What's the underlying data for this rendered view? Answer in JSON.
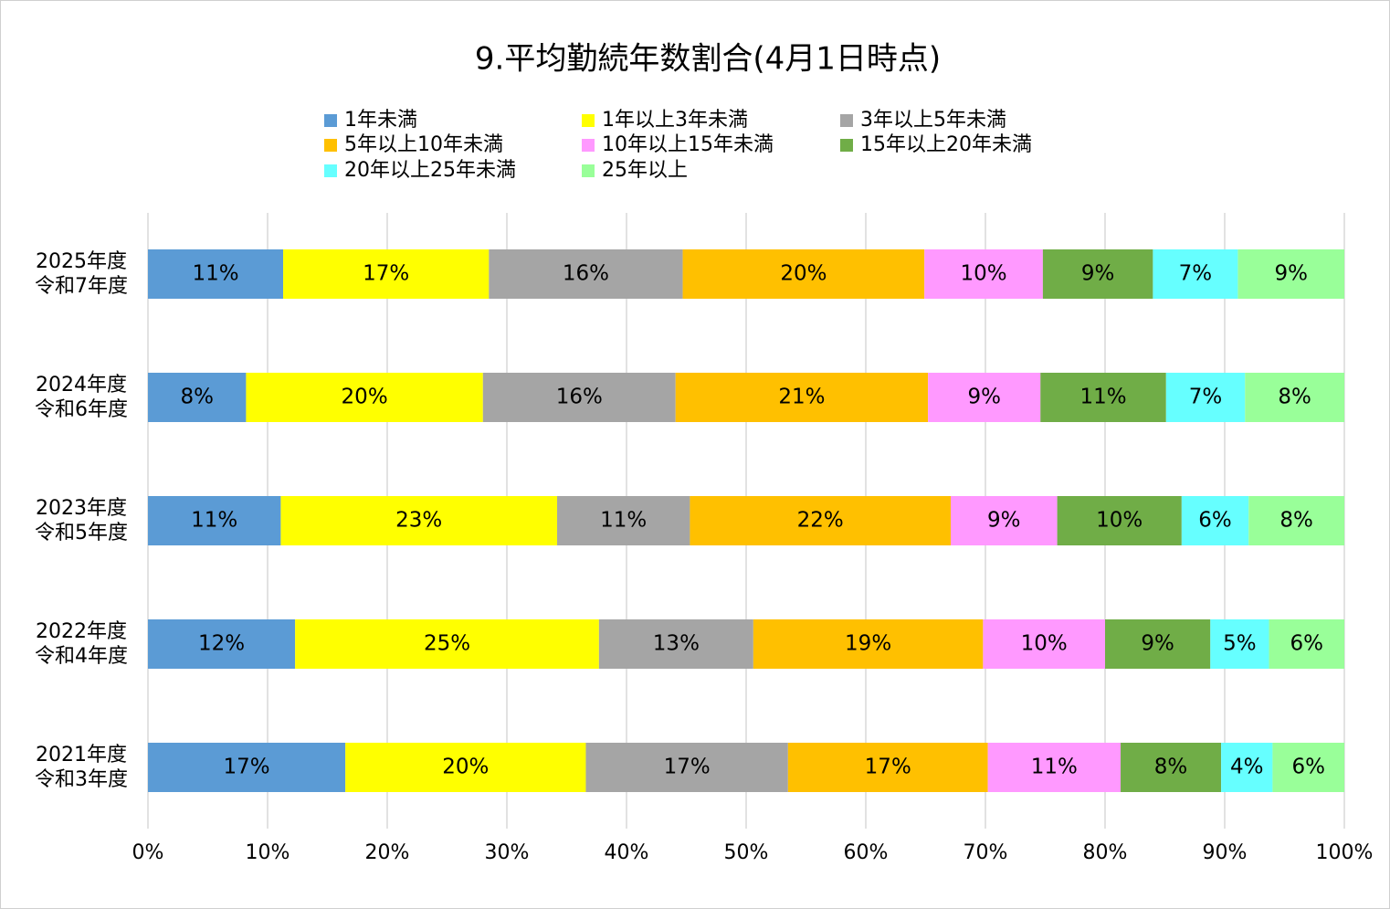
{
  "chart_data": {
    "type": "stacked-hbar",
    "title": "9.平均勤続年数割合(4月1日時点)",
    "categories": [
      [
        "2025年度",
        "令和7年度"
      ],
      [
        "2024年度",
        "令和6年度"
      ],
      [
        "2023年度",
        "令和5年度"
      ],
      [
        "2022年度",
        "令和4年度"
      ],
      [
        "2021年度",
        "令和3年度"
      ]
    ],
    "series": [
      {
        "name": "1年未満",
        "color": "#5b9bd5",
        "values": [
          11.3,
          8.2,
          11.1,
          12.3,
          16.5
        ],
        "value_labels": [
          "11%",
          "8%",
          "11%",
          "12%",
          "17%"
        ]
      },
      {
        "name": "1年以上3年未満",
        "color": "#ffff00",
        "values": [
          17.2,
          19.8,
          23.1,
          25.4,
          20.1
        ],
        "value_labels": [
          "17%",
          "20%",
          "23%",
          "25%",
          "20%"
        ]
      },
      {
        "name": "3年以上5年未満",
        "color": "#a5a5a5",
        "values": [
          16.2,
          16.1,
          11.1,
          12.9,
          16.9
        ],
        "value_labels": [
          "16%",
          "16%",
          "11%",
          "13%",
          "17%"
        ]
      },
      {
        "name": "5年以上10年未満",
        "color": "#ffc000",
        "values": [
          20.2,
          21.1,
          21.8,
          19.2,
          16.7
        ],
        "value_labels": [
          "20%",
          "21%",
          "22%",
          "19%",
          "17%"
        ]
      },
      {
        "name": "10年以上15年未満",
        "color": "#ff99ff",
        "values": [
          9.9,
          9.4,
          8.9,
          10.2,
          11.1
        ],
        "value_labels": [
          "10%",
          "9%",
          "9%",
          "10%",
          "11%"
        ]
      },
      {
        "name": "15年以上20年未満",
        "color": "#70ad47",
        "values": [
          9.2,
          10.5,
          10.4,
          8.8,
          8.4
        ],
        "value_labels": [
          "9%",
          "11%",
          "10%",
          "9%",
          "8%"
        ]
      },
      {
        "name": "20年以上25年未満",
        "color": "#66ffff",
        "values": [
          7.1,
          6.6,
          5.6,
          4.9,
          4.3
        ],
        "value_labels": [
          "7%",
          "7%",
          "6%",
          "5%",
          "4%"
        ]
      },
      {
        "name": "25年以上",
        "color": "#99ff99",
        "values": [
          8.9,
          8.3,
          8.0,
          6.3,
          6.0
        ],
        "value_labels": [
          "9%",
          "8%",
          "8%",
          "6%",
          "6%"
        ]
      }
    ],
    "xlim": [
      0,
      100
    ],
    "xticks": [
      {
        "value": 0,
        "label": "0%"
      },
      {
        "value": 10,
        "label": "10%"
      },
      {
        "value": 20,
        "label": "20%"
      },
      {
        "value": 30,
        "label": "30%"
      },
      {
        "value": 40,
        "label": "40%"
      },
      {
        "value": 50,
        "label": "50%"
      },
      {
        "value": 60,
        "label": "60%"
      },
      {
        "value": 70,
        "label": "70%"
      },
      {
        "value": 80,
        "label": "80%"
      },
      {
        "value": 90,
        "label": "90%"
      },
      {
        "value": 100,
        "label": "100%"
      }
    ],
    "grid": true
  }
}
